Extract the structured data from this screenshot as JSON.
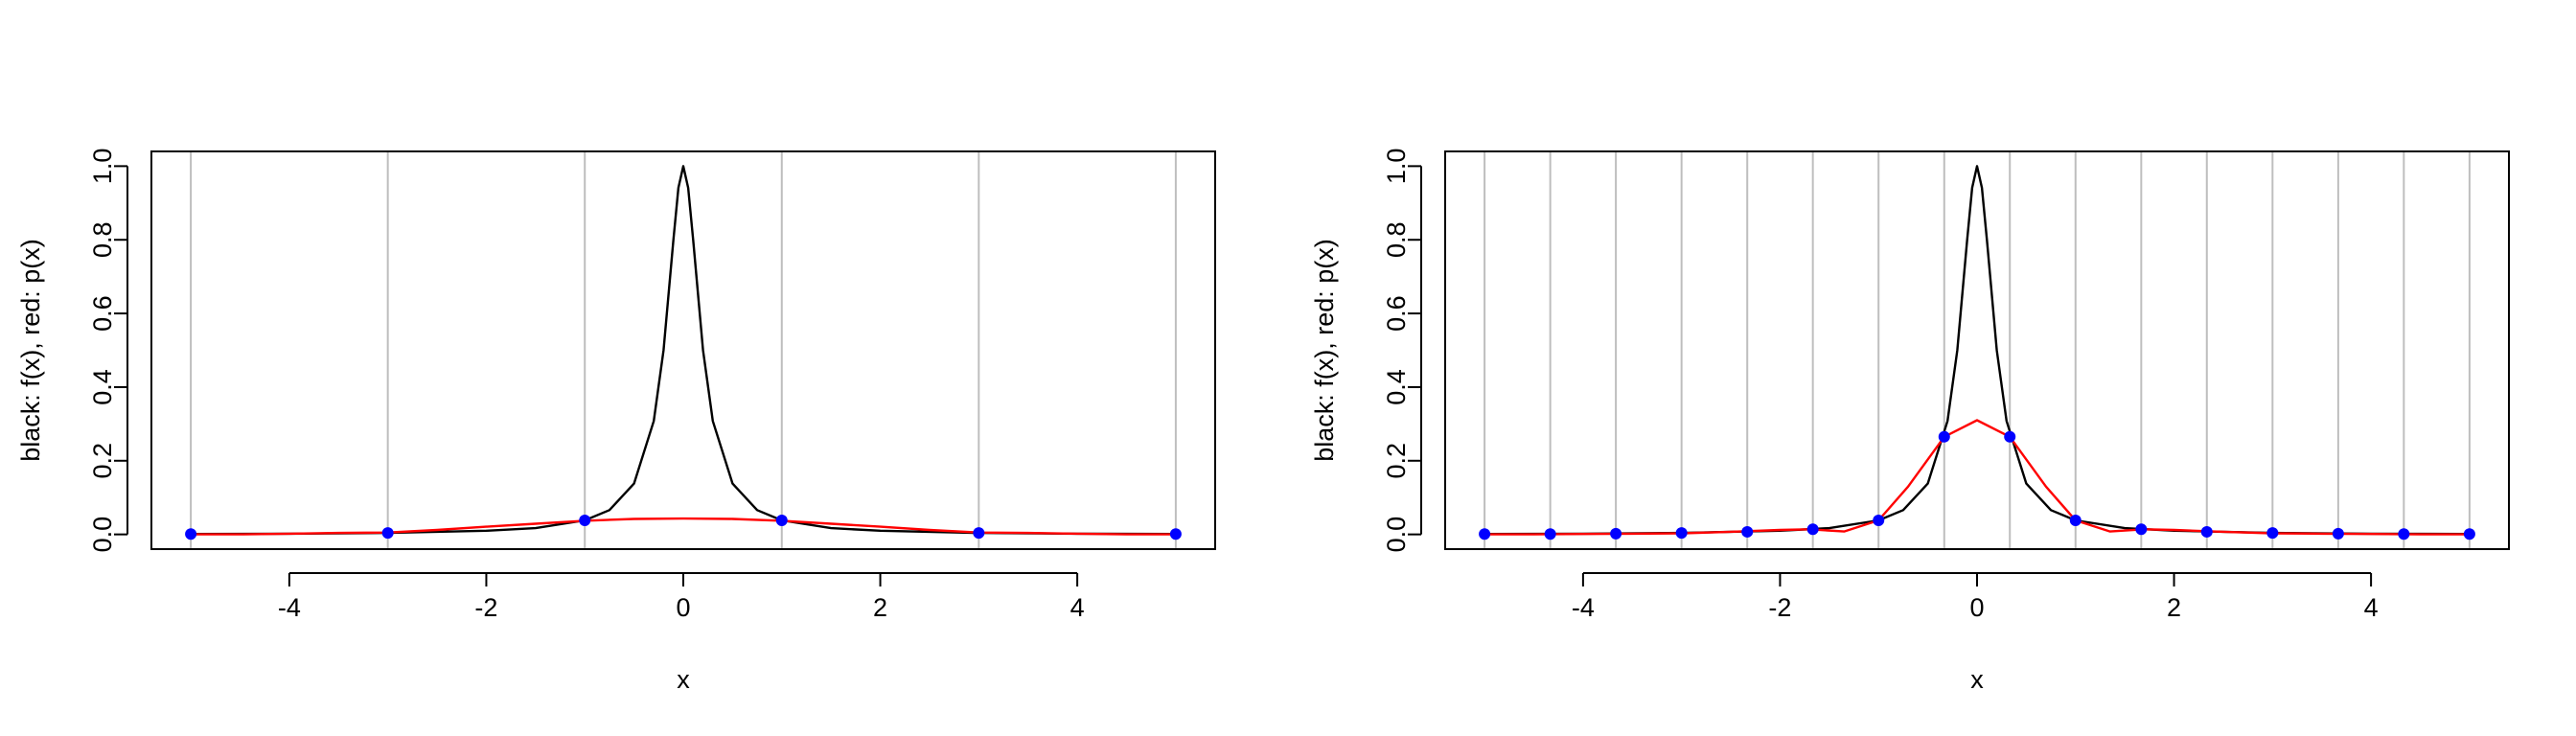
{
  "chart_data": [
    {
      "type": "line",
      "title": "",
      "xlabel": "x",
      "ylabel": "black: f(x), red: p(x)",
      "xlim": [
        -5.4,
        5.4
      ],
      "ylim": [
        -0.04,
        1.04
      ],
      "x_ticks": [
        -4,
        -2,
        0,
        2,
        4
      ],
      "x_tick_labels": [
        "-4",
        "-2",
        "0",
        "2",
        "4"
      ],
      "y_ticks": [
        0.0,
        0.2,
        0.4,
        0.6,
        0.8,
        1.0
      ],
      "y_tick_labels": [
        "0.0",
        "0.2",
        "0.4",
        "0.6",
        "0.8",
        "1.0"
      ],
      "grid": "vertical lines at interpolation nodes",
      "nodes_x": [
        -5,
        -3,
        -1,
        1,
        3,
        5
      ],
      "series": [
        {
          "role": "f(x)",
          "color": "#000000",
          "x": [
            -5,
            -4,
            -3,
            -2,
            -1.5,
            -1,
            -0.75,
            -0.5,
            -0.3,
            -0.2,
            -0.1,
            -0.05,
            0,
            0.05,
            0.1,
            0.2,
            0.3,
            0.5,
            0.75,
            1,
            1.5,
            2,
            3,
            4,
            5
          ],
          "y": [
            0.001,
            0.002,
            0.004,
            0.01,
            0.017,
            0.038,
            0.066,
            0.138,
            0.308,
            0.5,
            0.8,
            0.941,
            1.0,
            0.941,
            0.8,
            0.5,
            0.308,
            0.138,
            0.066,
            0.038,
            0.017,
            0.01,
            0.004,
            0.002,
            0.001
          ]
        },
        {
          "role": "p(x)",
          "color": "#ff0000",
          "x": [
            -5,
            -4.5,
            -4,
            -3.5,
            -3,
            -2.5,
            -2,
            -1.5,
            -1,
            -0.5,
            0,
            0.5,
            1,
            1.5,
            2,
            2.5,
            3,
            3.5,
            4,
            4.5,
            5
          ],
          "y": [
            0.0,
            0.0,
            0.002,
            0.004,
            0.005,
            0.012,
            0.021,
            0.029,
            0.037,
            0.042,
            0.043,
            0.042,
            0.037,
            0.029,
            0.021,
            0.012,
            0.005,
            0.004,
            0.002,
            0.0,
            0.0
          ]
        },
        {
          "role": "nodes",
          "color": "#0000ff",
          "x": [
            -5,
            -3,
            -1,
            1,
            3,
            5
          ],
          "y": [
            0.001,
            0.004,
            0.038,
            0.038,
            0.004,
            0.001
          ]
        }
      ]
    },
    {
      "type": "line",
      "title": "",
      "xlabel": "x",
      "ylabel": "black: f(x), red: p(x)",
      "xlim": [
        -5.4,
        5.4
      ],
      "ylim": [
        -0.04,
        1.04
      ],
      "x_ticks": [
        -4,
        -2,
        0,
        2,
        4
      ],
      "x_tick_labels": [
        "-4",
        "-2",
        "0",
        "2",
        "4"
      ],
      "y_ticks": [
        0.0,
        0.2,
        0.4,
        0.6,
        0.8,
        1.0
      ],
      "y_tick_labels": [
        "0.0",
        "0.2",
        "0.4",
        "0.6",
        "0.8",
        "1.0"
      ],
      "grid": "vertical lines at interpolation nodes",
      "nodes_x": [
        -5,
        -4.333,
        -3.667,
        -3,
        -2.333,
        -1.667,
        -1,
        -0.333,
        0.333,
        1,
        1.667,
        2.333,
        3,
        3.667,
        4.333,
        5
      ],
      "series": [
        {
          "role": "f(x)",
          "color": "#000000",
          "x": [
            -5,
            -4,
            -3,
            -2,
            -1.5,
            -1,
            -0.75,
            -0.5,
            -0.3,
            -0.2,
            -0.1,
            -0.05,
            0,
            0.05,
            0.1,
            0.2,
            0.3,
            0.5,
            0.75,
            1,
            1.5,
            2,
            3,
            4,
            5
          ],
          "y": [
            0.001,
            0.002,
            0.004,
            0.01,
            0.017,
            0.038,
            0.066,
            0.138,
            0.308,
            0.5,
            0.8,
            0.941,
            1.0,
            0.941,
            0.8,
            0.5,
            0.308,
            0.138,
            0.066,
            0.038,
            0.017,
            0.01,
            0.004,
            0.002,
            0.001
          ]
        },
        {
          "role": "p(x)",
          "color": "#ff0000",
          "x": [
            -5,
            -4.5,
            -4,
            -3.5,
            -3,
            -2.5,
            -2,
            -1.7,
            -1.35,
            -1,
            -0.7,
            -0.333,
            0,
            0.333,
            0.7,
            1,
            1.35,
            1.7,
            2,
            2.5,
            3,
            3.5,
            4,
            4.5,
            5
          ],
          "y": [
            0.0,
            0.0,
            0.001,
            0.002,
            0.003,
            0.007,
            0.012,
            0.014,
            0.008,
            0.038,
            0.13,
            0.265,
            0.31,
            0.265,
            0.13,
            0.038,
            0.008,
            0.014,
            0.012,
            0.007,
            0.003,
            0.002,
            0.001,
            0.0,
            0.0
          ]
        },
        {
          "role": "nodes",
          "color": "#0000ff",
          "x": [
            -5,
            -4.333,
            -3.667,
            -3,
            -2.333,
            -1.667,
            -1,
            -0.333,
            0.333,
            1,
            1.667,
            2.333,
            3,
            3.667,
            4.333,
            5
          ],
          "y": [
            0.001,
            0.001,
            0.002,
            0.004,
            0.007,
            0.014,
            0.038,
            0.265,
            0.265,
            0.038,
            0.014,
            0.007,
            0.004,
            0.002,
            0.001,
            0.001
          ]
        }
      ]
    }
  ]
}
